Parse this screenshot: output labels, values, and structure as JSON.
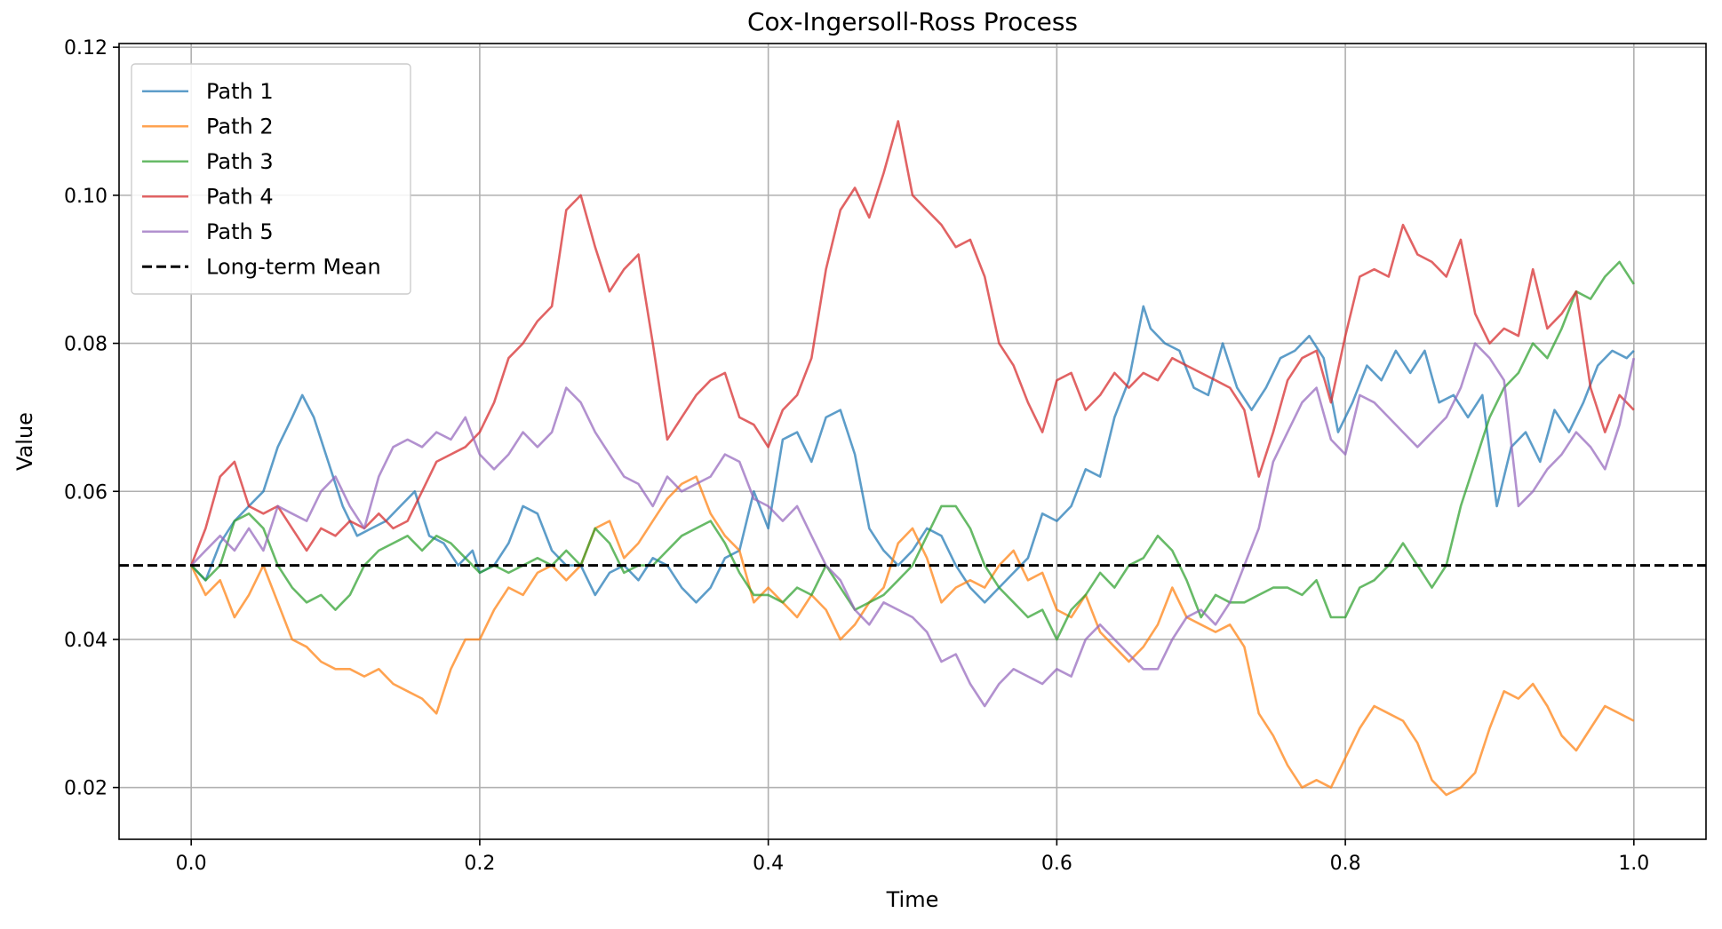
{
  "chart_data": {
    "type": "line",
    "title": "Cox-Ingersoll-Ross Process",
    "xlabel": "Time",
    "ylabel": "Value",
    "xlim": [
      -0.05,
      1.05
    ],
    "ylim": [
      0.013,
      0.1205
    ],
    "xticks": [
      0.0,
      0.2,
      0.4,
      0.6,
      0.8,
      1.0
    ],
    "xtick_labels": [
      "0.0",
      "0.2",
      "0.4",
      "0.6",
      "0.8",
      "1.0"
    ],
    "yticks": [
      0.02,
      0.04,
      0.06,
      0.08,
      0.1,
      0.12
    ],
    "ytick_labels": [
      "0.02",
      "0.04",
      "0.06",
      "0.08",
      "0.10",
      "0.12"
    ],
    "grid": true,
    "legend_position": "top-left",
    "series": [
      {
        "name": "Path 1",
        "color": "#1f77b4",
        "x": [
          0.0,
          0.01,
          0.02,
          0.03,
          0.04,
          0.05,
          0.06,
          0.07,
          0.077,
          0.085,
          0.095,
          0.105,
          0.115,
          0.125,
          0.135,
          0.145,
          0.155,
          0.165,
          0.175,
          0.185,
          0.195,
          0.2,
          0.21,
          0.22,
          0.23,
          0.24,
          0.25,
          0.26,
          0.27,
          0.28,
          0.29,
          0.3,
          0.31,
          0.32,
          0.33,
          0.34,
          0.35,
          0.36,
          0.37,
          0.38,
          0.39,
          0.4,
          0.41,
          0.42,
          0.43,
          0.44,
          0.45,
          0.46,
          0.47,
          0.48,
          0.49,
          0.5,
          0.51,
          0.52,
          0.53,
          0.54,
          0.55,
          0.56,
          0.57,
          0.58,
          0.59,
          0.6,
          0.61,
          0.62,
          0.63,
          0.64,
          0.65,
          0.66,
          0.665,
          0.675,
          0.685,
          0.695,
          0.705,
          0.715,
          0.725,
          0.735,
          0.745,
          0.755,
          0.765,
          0.775,
          0.785,
          0.795,
          0.805,
          0.815,
          0.825,
          0.835,
          0.845,
          0.855,
          0.865,
          0.875,
          0.885,
          0.895,
          0.905,
          0.915,
          0.925,
          0.935,
          0.945,
          0.955,
          0.965,
          0.975,
          0.985,
          0.995,
          1.0
        ],
        "y": [
          0.05,
          0.048,
          0.053,
          0.056,
          0.058,
          0.06,
          0.066,
          0.07,
          0.073,
          0.07,
          0.064,
          0.058,
          0.054,
          0.055,
          0.056,
          0.058,
          0.06,
          0.054,
          0.053,
          0.05,
          0.052,
          0.049,
          0.05,
          0.053,
          0.058,
          0.057,
          0.052,
          0.05,
          0.05,
          0.046,
          0.049,
          0.05,
          0.048,
          0.051,
          0.05,
          0.047,
          0.045,
          0.047,
          0.051,
          0.052,
          0.06,
          0.055,
          0.067,
          0.068,
          0.064,
          0.07,
          0.071,
          0.065,
          0.055,
          0.052,
          0.05,
          0.052,
          0.055,
          0.054,
          0.05,
          0.047,
          0.045,
          0.047,
          0.049,
          0.051,
          0.057,
          0.056,
          0.058,
          0.063,
          0.062,
          0.07,
          0.075,
          0.085,
          0.082,
          0.08,
          0.079,
          0.074,
          0.073,
          0.08,
          0.074,
          0.071,
          0.074,
          0.078,
          0.079,
          0.081,
          0.078,
          0.068,
          0.072,
          0.077,
          0.075,
          0.079,
          0.076,
          0.079,
          0.072,
          0.073,
          0.07,
          0.073,
          0.058,
          0.066,
          0.068,
          0.064,
          0.071,
          0.068,
          0.072,
          0.077,
          0.079,
          0.078,
          0.079
        ]
      },
      {
        "name": "Path 2",
        "color": "#ff7f0e",
        "x": [
          0.0,
          0.01,
          0.02,
          0.03,
          0.04,
          0.05,
          0.06,
          0.07,
          0.08,
          0.09,
          0.1,
          0.11,
          0.12,
          0.13,
          0.14,
          0.15,
          0.16,
          0.17,
          0.18,
          0.19,
          0.2,
          0.21,
          0.22,
          0.23,
          0.24,
          0.25,
          0.26,
          0.27,
          0.28,
          0.29,
          0.3,
          0.31,
          0.32,
          0.33,
          0.34,
          0.35,
          0.36,
          0.37,
          0.38,
          0.39,
          0.4,
          0.41,
          0.42,
          0.43,
          0.44,
          0.45,
          0.46,
          0.47,
          0.48,
          0.49,
          0.5,
          0.51,
          0.52,
          0.53,
          0.54,
          0.55,
          0.56,
          0.57,
          0.58,
          0.59,
          0.6,
          0.61,
          0.62,
          0.63,
          0.64,
          0.65,
          0.66,
          0.67,
          0.68,
          0.69,
          0.7,
          0.71,
          0.72,
          0.73,
          0.74,
          0.75,
          0.76,
          0.77,
          0.78,
          0.79,
          0.8,
          0.81,
          0.82,
          0.83,
          0.84,
          0.85,
          0.86,
          0.87,
          0.88,
          0.89,
          0.9,
          0.91,
          0.92,
          0.93,
          0.94,
          0.95,
          0.96,
          0.97,
          0.98,
          0.99,
          1.0
        ],
        "y": [
          0.05,
          0.046,
          0.048,
          0.043,
          0.046,
          0.05,
          0.045,
          0.04,
          0.039,
          0.037,
          0.036,
          0.036,
          0.035,
          0.036,
          0.034,
          0.033,
          0.032,
          0.03,
          0.036,
          0.04,
          0.04,
          0.044,
          0.047,
          0.046,
          0.049,
          0.05,
          0.048,
          0.05,
          0.055,
          0.056,
          0.051,
          0.053,
          0.056,
          0.059,
          0.061,
          0.062,
          0.057,
          0.054,
          0.052,
          0.045,
          0.047,
          0.045,
          0.043,
          0.046,
          0.044,
          0.04,
          0.042,
          0.045,
          0.047,
          0.053,
          0.055,
          0.051,
          0.045,
          0.047,
          0.048,
          0.047,
          0.05,
          0.052,
          0.048,
          0.049,
          0.044,
          0.043,
          0.046,
          0.041,
          0.039,
          0.037,
          0.039,
          0.042,
          0.047,
          0.043,
          0.042,
          0.041,
          0.042,
          0.039,
          0.03,
          0.027,
          0.023,
          0.02,
          0.021,
          0.02,
          0.024,
          0.028,
          0.031,
          0.03,
          0.029,
          0.026,
          0.021,
          0.019,
          0.02,
          0.022,
          0.028,
          0.033,
          0.032,
          0.034,
          0.031,
          0.027,
          0.025,
          0.028,
          0.031,
          0.03,
          0.029
        ]
      },
      {
        "name": "Path 3",
        "color": "#2ca02c",
        "x": [
          0.0,
          0.01,
          0.02,
          0.03,
          0.04,
          0.05,
          0.06,
          0.07,
          0.08,
          0.09,
          0.1,
          0.11,
          0.12,
          0.13,
          0.14,
          0.15,
          0.16,
          0.17,
          0.18,
          0.19,
          0.2,
          0.21,
          0.22,
          0.23,
          0.24,
          0.25,
          0.26,
          0.27,
          0.28,
          0.29,
          0.3,
          0.31,
          0.32,
          0.33,
          0.34,
          0.35,
          0.36,
          0.37,
          0.38,
          0.39,
          0.4,
          0.41,
          0.42,
          0.43,
          0.44,
          0.45,
          0.46,
          0.47,
          0.48,
          0.49,
          0.5,
          0.51,
          0.52,
          0.53,
          0.54,
          0.55,
          0.56,
          0.57,
          0.58,
          0.59,
          0.6,
          0.61,
          0.62,
          0.63,
          0.64,
          0.65,
          0.66,
          0.67,
          0.68,
          0.69,
          0.7,
          0.71,
          0.72,
          0.73,
          0.74,
          0.75,
          0.76,
          0.77,
          0.78,
          0.79,
          0.8,
          0.81,
          0.82,
          0.83,
          0.84,
          0.85,
          0.86,
          0.87,
          0.88,
          0.89,
          0.9,
          0.91,
          0.92,
          0.93,
          0.94,
          0.95,
          0.96,
          0.97,
          0.98,
          0.99,
          1.0
        ],
        "y": [
          0.05,
          0.048,
          0.05,
          0.056,
          0.057,
          0.055,
          0.05,
          0.047,
          0.045,
          0.046,
          0.044,
          0.046,
          0.05,
          0.052,
          0.053,
          0.054,
          0.052,
          0.054,
          0.053,
          0.051,
          0.049,
          0.05,
          0.049,
          0.05,
          0.051,
          0.05,
          0.052,
          0.05,
          0.055,
          0.053,
          0.049,
          0.05,
          0.05,
          0.052,
          0.054,
          0.055,
          0.056,
          0.053,
          0.049,
          0.046,
          0.046,
          0.045,
          0.047,
          0.046,
          0.05,
          0.047,
          0.044,
          0.045,
          0.046,
          0.048,
          0.05,
          0.054,
          0.058,
          0.058,
          0.055,
          0.05,
          0.047,
          0.045,
          0.043,
          0.044,
          0.04,
          0.044,
          0.046,
          0.049,
          0.047,
          0.05,
          0.051,
          0.054,
          0.052,
          0.048,
          0.043,
          0.046,
          0.045,
          0.045,
          0.046,
          0.047,
          0.047,
          0.046,
          0.048,
          0.043,
          0.043,
          0.047,
          0.048,
          0.05,
          0.053,
          0.05,
          0.047,
          0.05,
          0.058,
          0.064,
          0.07,
          0.074,
          0.076,
          0.08,
          0.078,
          0.082,
          0.087,
          0.086,
          0.089,
          0.091,
          0.088
        ]
      },
      {
        "name": "Path 4",
        "color": "#d62728",
        "x": [
          0.0,
          0.01,
          0.02,
          0.03,
          0.04,
          0.05,
          0.06,
          0.07,
          0.08,
          0.09,
          0.1,
          0.11,
          0.12,
          0.13,
          0.14,
          0.15,
          0.16,
          0.17,
          0.18,
          0.19,
          0.2,
          0.21,
          0.22,
          0.23,
          0.24,
          0.25,
          0.26,
          0.27,
          0.28,
          0.29,
          0.3,
          0.31,
          0.32,
          0.33,
          0.34,
          0.35,
          0.36,
          0.37,
          0.38,
          0.39,
          0.4,
          0.41,
          0.42,
          0.43,
          0.44,
          0.45,
          0.46,
          0.47,
          0.48,
          0.49,
          0.5,
          0.51,
          0.52,
          0.53,
          0.54,
          0.55,
          0.56,
          0.57,
          0.58,
          0.59,
          0.6,
          0.61,
          0.62,
          0.63,
          0.64,
          0.65,
          0.66,
          0.67,
          0.68,
          0.69,
          0.7,
          0.71,
          0.72,
          0.73,
          0.74,
          0.75,
          0.76,
          0.77,
          0.78,
          0.79,
          0.8,
          0.81,
          0.82,
          0.83,
          0.84,
          0.85,
          0.86,
          0.87,
          0.88,
          0.89,
          0.9,
          0.91,
          0.92,
          0.93,
          0.94,
          0.95,
          0.96,
          0.97,
          0.98,
          0.99,
          1.0
        ],
        "y": [
          0.05,
          0.055,
          0.062,
          0.064,
          0.058,
          0.057,
          0.058,
          0.055,
          0.052,
          0.055,
          0.054,
          0.056,
          0.055,
          0.057,
          0.055,
          0.056,
          0.06,
          0.064,
          0.065,
          0.066,
          0.068,
          0.072,
          0.078,
          0.08,
          0.083,
          0.085,
          0.098,
          0.1,
          0.093,
          0.087,
          0.09,
          0.092,
          0.08,
          0.067,
          0.07,
          0.073,
          0.075,
          0.076,
          0.07,
          0.069,
          0.066,
          0.071,
          0.073,
          0.078,
          0.09,
          0.098,
          0.101,
          0.097,
          0.103,
          0.11,
          0.1,
          0.098,
          0.096,
          0.093,
          0.094,
          0.089,
          0.08,
          0.077,
          0.072,
          0.068,
          0.075,
          0.076,
          0.071,
          0.073,
          0.076,
          0.074,
          0.076,
          0.075,
          0.078,
          0.077,
          0.076,
          0.075,
          0.074,
          0.071,
          0.062,
          0.068,
          0.075,
          0.078,
          0.079,
          0.072,
          0.081,
          0.089,
          0.09,
          0.089,
          0.096,
          0.092,
          0.091,
          0.089,
          0.094,
          0.084,
          0.08,
          0.082,
          0.081,
          0.09,
          0.082,
          0.084,
          0.087,
          0.074,
          0.068,
          0.073,
          0.071
        ]
      },
      {
        "name": "Path 5",
        "color": "#9467bd",
        "x": [
          0.0,
          0.01,
          0.02,
          0.03,
          0.04,
          0.05,
          0.06,
          0.07,
          0.08,
          0.09,
          0.1,
          0.11,
          0.12,
          0.13,
          0.14,
          0.15,
          0.16,
          0.17,
          0.18,
          0.19,
          0.2,
          0.21,
          0.22,
          0.23,
          0.24,
          0.25,
          0.26,
          0.27,
          0.28,
          0.29,
          0.3,
          0.31,
          0.32,
          0.33,
          0.34,
          0.35,
          0.36,
          0.37,
          0.38,
          0.39,
          0.4,
          0.41,
          0.42,
          0.43,
          0.44,
          0.45,
          0.46,
          0.47,
          0.48,
          0.49,
          0.5,
          0.51,
          0.52,
          0.53,
          0.54,
          0.55,
          0.56,
          0.57,
          0.58,
          0.59,
          0.6,
          0.61,
          0.62,
          0.63,
          0.64,
          0.65,
          0.66,
          0.67,
          0.68,
          0.69,
          0.7,
          0.71,
          0.72,
          0.73,
          0.74,
          0.75,
          0.76,
          0.77,
          0.78,
          0.79,
          0.8,
          0.81,
          0.82,
          0.83,
          0.84,
          0.85,
          0.86,
          0.87,
          0.88,
          0.89,
          0.9,
          0.91,
          0.92,
          0.93,
          0.94,
          0.95,
          0.96,
          0.97,
          0.98,
          0.99,
          1.0
        ],
        "y": [
          0.05,
          0.052,
          0.054,
          0.052,
          0.055,
          0.052,
          0.058,
          0.057,
          0.056,
          0.06,
          0.062,
          0.058,
          0.055,
          0.062,
          0.066,
          0.067,
          0.066,
          0.068,
          0.067,
          0.07,
          0.065,
          0.063,
          0.065,
          0.068,
          0.066,
          0.068,
          0.074,
          0.072,
          0.068,
          0.065,
          0.062,
          0.061,
          0.058,
          0.062,
          0.06,
          0.061,
          0.062,
          0.065,
          0.064,
          0.059,
          0.058,
          0.056,
          0.058,
          0.054,
          0.05,
          0.048,
          0.044,
          0.042,
          0.045,
          0.044,
          0.043,
          0.041,
          0.037,
          0.038,
          0.034,
          0.031,
          0.034,
          0.036,
          0.035,
          0.034,
          0.036,
          0.035,
          0.04,
          0.042,
          0.04,
          0.038,
          0.036,
          0.036,
          0.04,
          0.043,
          0.044,
          0.042,
          0.045,
          0.05,
          0.055,
          0.064,
          0.068,
          0.072,
          0.074,
          0.067,
          0.065,
          0.073,
          0.072,
          0.07,
          0.068,
          0.066,
          0.068,
          0.07,
          0.074,
          0.08,
          0.078,
          0.075,
          0.058,
          0.06,
          0.063,
          0.065,
          0.068,
          0.066,
          0.063,
          0.069,
          0.078
        ]
      },
      {
        "name": "Long-term Mean",
        "color": "#000000",
        "dashed": true,
        "x": [
          -0.05,
          1.05
        ],
        "y": [
          0.05,
          0.05
        ]
      }
    ]
  }
}
